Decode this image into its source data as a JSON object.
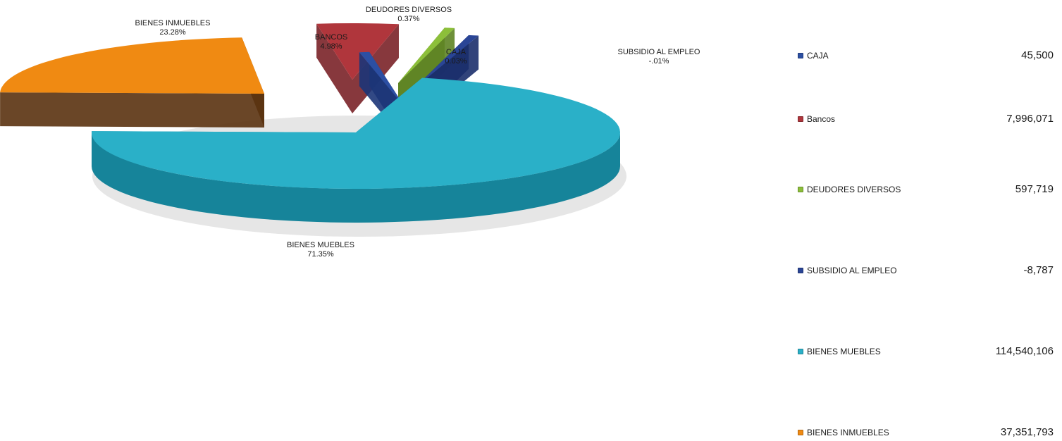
{
  "chart_data": {
    "type": "pie",
    "variant": "3d-exploded",
    "title": "",
    "slices": [
      {
        "name": "CAJA",
        "label": "CAJA",
        "percent_label": "0.03%",
        "percent": 0.03,
        "value": 45500,
        "value_label": "45,500",
        "color": "#2c4fa3",
        "side": "#1c3578"
      },
      {
        "name": "Bancos",
        "label": "BANCOS",
        "percent_label": "4.98%",
        "percent": 4.98,
        "value": 7996071,
        "value_label": "7,996,071",
        "color": "#b0363c",
        "side": "#7a2228"
      },
      {
        "name": "DEUDORES DIVERSOS",
        "label": "DEUDORES DIVERSOS",
        "percent_label": "0.37%",
        "percent": 0.37,
        "value": 597719,
        "value_label": "597,719",
        "color": "#8cbf3a",
        "side": "#5e8424"
      },
      {
        "name": "SUBSIDIO AL EMPLEO",
        "label": "SUBSIDIO AL EMPLEO",
        "percent_label": "-.01%",
        "percent": -0.01,
        "value": -8787,
        "value_label": "-8,787",
        "color": "#2a4596",
        "side": "#1b2f6b"
      },
      {
        "name": "BIENES MUEBLES",
        "label": "BIENES MUEBLES",
        "percent_label": "71.35%",
        "percent": 71.35,
        "value": 114540106,
        "value_label": "114,540,106",
        "color": "#2ab0c8",
        "side": "#16849a"
      },
      {
        "name": "BIENES INMUEBLES",
        "label": "BIENES INMUEBLES",
        "percent_label": "23.28%",
        "percent": 23.28,
        "value": 37351793,
        "value_label": "37,351,793",
        "color": "#f08a12",
        "side": "#5a3210"
      }
    ],
    "legend_position": "right"
  }
}
